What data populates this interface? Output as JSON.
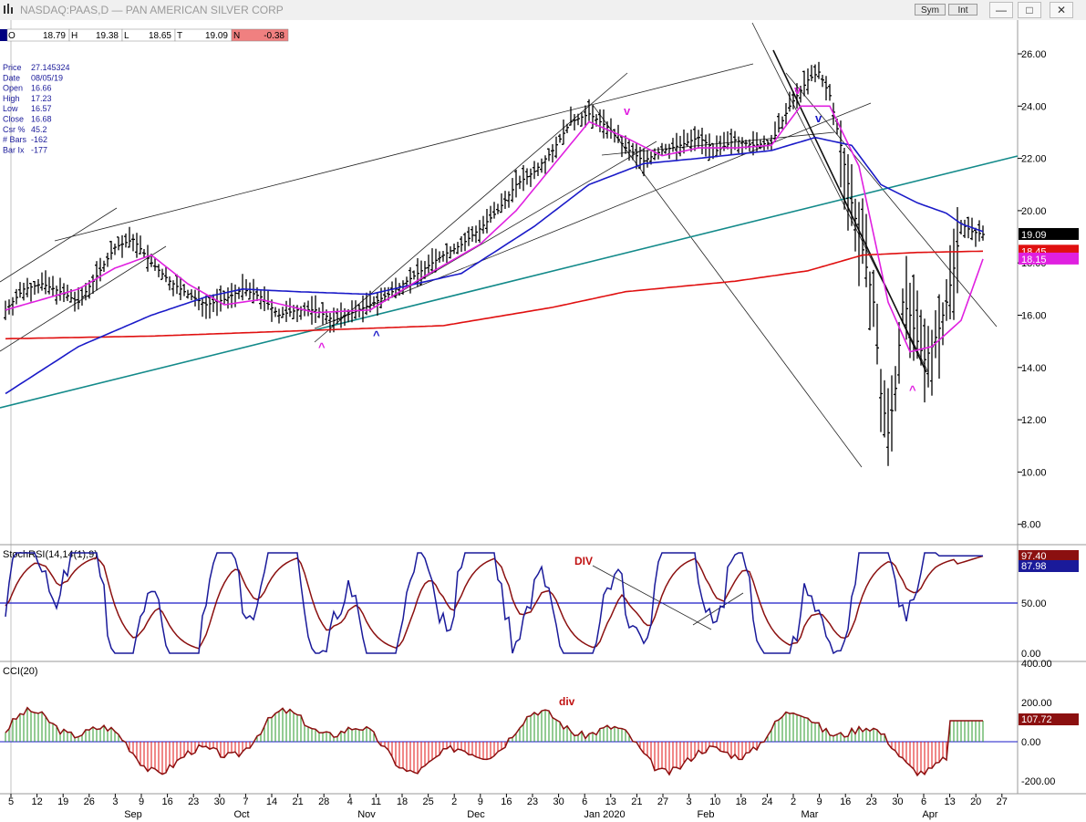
{
  "window": {
    "title": "NASDAQ:PAAS,D — PAN AMERICAN SILVER CORP",
    "sym_button": "Sym",
    "int_button": "Int",
    "minimize_glyph": "—",
    "maximize_glyph": "□",
    "close_glyph": "✕"
  },
  "ohlc_bar": {
    "o_label": "O",
    "o_value": "18.79",
    "h_label": "H",
    "h_value": "19.38",
    "l_label": "L",
    "l_value": "18.65",
    "c_label": "T",
    "c_value": "19.09",
    "n_label": "N",
    "n_value": "-0.38"
  },
  "data_window": [
    {
      "label": "Price",
      "value": "27.145324"
    },
    {
      "label": "Date",
      "value": "08/05/19"
    },
    {
      "label": "Open",
      "value": "16.66"
    },
    {
      "label": "High",
      "value": "17.23"
    },
    {
      "label": "Low",
      "value": "16.57"
    },
    {
      "label": "Close",
      "value": "16.68"
    },
    {
      "label": "Csr %",
      "value": "45.2"
    },
    {
      "label": "# Bars",
      "value": "-162"
    },
    {
      "label": "Bar Ix",
      "value": "-177"
    }
  ],
  "colors": {
    "price_bars": "#000000",
    "ma_fast": "#e020e0",
    "ma_mid": "#1a1ac8",
    "ma_slow": "#e01010",
    "trend_teal": "#138a8a",
    "stoch_k": "#1a1a9a",
    "stoch_d": "#8b1010",
    "cci_pos": "#2a9a2a",
    "cci_neg": "#e01010",
    "cci_line": "#8b1010"
  },
  "chart_data": [
    {
      "type": "line",
      "name": "price",
      "y_ticks": [
        "26.00",
        "24.00",
        "22.00",
        "20.00",
        "18.00",
        "16.00",
        "14.00",
        "12.00",
        "10.00",
        "8.00"
      ],
      "ylim": [
        7.2,
        27.3
      ],
      "x_day_labels": [
        "5",
        "12",
        "19",
        "26",
        "3",
        "9",
        "16",
        "23",
        "30",
        "7",
        "14",
        "21",
        "28",
        "4",
        "11",
        "18",
        "25",
        "2",
        "9",
        "16",
        "23",
        "30",
        "6",
        "13",
        "21",
        "27",
        "3",
        "10",
        "18",
        "24",
        "2",
        "9",
        "16",
        "23",
        "30",
        "6",
        "13",
        "20",
        "27"
      ],
      "x_month_labels": [
        "Sep",
        "Oct",
        "Nov",
        "Dec",
        "Jan 2020",
        "Feb",
        "Mar",
        "Apr"
      ],
      "last_values": [
        {
          "name": "price",
          "value": "19.09"
        },
        {
          "name": "ma_red",
          "value": "18.45"
        },
        {
          "name": "ma_magenta",
          "value": "18.15"
        }
      ],
      "close_series": [
        [
          0,
          16.2
        ],
        [
          5,
          17.0
        ],
        [
          10,
          17.2
        ],
        [
          15,
          16.9
        ],
        [
          20,
          16.5
        ],
        [
          25,
          17.5
        ],
        [
          30,
          18.6
        ],
        [
          35,
          18.9
        ],
        [
          40,
          18.0
        ],
        [
          45,
          17.3
        ],
        [
          50,
          16.8
        ],
        [
          55,
          16.4
        ],
        [
          60,
          16.6
        ],
        [
          65,
          17.0
        ],
        [
          70,
          16.7
        ],
        [
          75,
          16.0
        ],
        [
          80,
          16.2
        ],
        [
          85,
          16.2
        ],
        [
          90,
          15.8
        ],
        [
          95,
          16.1
        ],
        [
          100,
          16.4
        ],
        [
          105,
          16.8
        ],
        [
          110,
          17.3
        ],
        [
          115,
          17.8
        ],
        [
          120,
          18.3
        ],
        [
          125,
          18.7
        ],
        [
          130,
          19.3
        ],
        [
          135,
          20.0
        ],
        [
          140,
          21.0
        ],
        [
          145,
          21.5
        ],
        [
          150,
          22.3
        ],
        [
          155,
          23.4
        ],
        [
          160,
          23.7
        ],
        [
          165,
          23.2
        ],
        [
          170,
          22.4
        ],
        [
          175,
          21.9
        ],
        [
          180,
          22.3
        ],
        [
          185,
          22.5
        ],
        [
          190,
          22.8
        ],
        [
          195,
          22.3
        ],
        [
          200,
          22.7
        ],
        [
          205,
          22.5
        ],
        [
          210,
          22.6
        ],
        [
          215,
          24.0
        ],
        [
          220,
          25.0
        ],
        [
          223,
          25.3
        ],
        [
          226,
          24.4
        ],
        [
          229,
          22.5
        ],
        [
          232,
          20.3
        ],
        [
          235,
          18.5
        ],
        [
          238,
          16.5
        ],
        [
          240,
          13.0
        ],
        [
          242,
          11.5
        ],
        [
          244,
          13.2
        ],
        [
          246,
          16.5
        ],
        [
          248,
          16.0
        ],
        [
          250,
          15.0
        ],
        [
          252,
          14.3
        ],
        [
          254,
          14.8
        ],
        [
          256,
          15.5
        ],
        [
          258,
          16.5
        ],
        [
          260,
          17.8
        ],
        [
          262,
          19.5
        ],
        [
          265,
          19.2
        ],
        [
          268,
          19.09
        ]
      ],
      "ma_magenta": [
        [
          0,
          16.2
        ],
        [
          20,
          17.0
        ],
        [
          30,
          17.8
        ],
        [
          40,
          18.3
        ],
        [
          50,
          17.2
        ],
        [
          60,
          16.4
        ],
        [
          70,
          16.6
        ],
        [
          85,
          16.1
        ],
        [
          100,
          16.2
        ],
        [
          115,
          17.5
        ],
        [
          130,
          18.7
        ],
        [
          140,
          20.0
        ],
        [
          150,
          21.7
        ],
        [
          160,
          23.4
        ],
        [
          170,
          22.8
        ],
        [
          180,
          22.1
        ],
        [
          190,
          22.4
        ],
        [
          200,
          22.4
        ],
        [
          210,
          22.5
        ],
        [
          218,
          24.0
        ],
        [
          226,
          24.0
        ],
        [
          234,
          21.7
        ],
        [
          242,
          16.5
        ],
        [
          248,
          14.6
        ],
        [
          254,
          14.8
        ],
        [
          262,
          15.8
        ],
        [
          268,
          18.15
        ]
      ],
      "ma_blue": [
        [
          0,
          13.0
        ],
        [
          20,
          14.8
        ],
        [
          40,
          16.0
        ],
        [
          55,
          16.7
        ],
        [
          65,
          17.0
        ],
        [
          80,
          16.9
        ],
        [
          100,
          16.8
        ],
        [
          125,
          17.6
        ],
        [
          145,
          19.4
        ],
        [
          160,
          21.0
        ],
        [
          175,
          21.8
        ],
        [
          190,
          22.0
        ],
        [
          210,
          22.3
        ],
        [
          222,
          22.8
        ],
        [
          232,
          22.5
        ],
        [
          240,
          21.0
        ],
        [
          250,
          20.3
        ],
        [
          258,
          19.9
        ],
        [
          262,
          19.5
        ],
        [
          268,
          19.2
        ]
      ],
      "ma_red": [
        [
          0,
          15.1
        ],
        [
          40,
          15.2
        ],
        [
          80,
          15.4
        ],
        [
          120,
          15.6
        ],
        [
          150,
          16.3
        ],
        [
          170,
          16.9
        ],
        [
          200,
          17.3
        ],
        [
          220,
          17.7
        ],
        [
          235,
          18.3
        ],
        [
          250,
          18.4
        ],
        [
          268,
          18.45
        ]
      ]
    },
    {
      "type": "line",
      "name": "StochRSI(14,14(1),9)",
      "label": "StochRSI(14,14(1),9)",
      "y_ticks": [
        "0.00",
        "50.00"
      ],
      "ylim": [
        -5,
        105
      ],
      "last_values": [
        {
          "name": "d",
          "value": "97.40"
        },
        {
          "name": "k",
          "value": "87.98"
        }
      ],
      "annotation": "DIV"
    },
    {
      "type": "bar",
      "name": "CCI(20)",
      "label": "CCI(20)",
      "y_ticks": [
        "400.00",
        "200.00",
        "0.00",
        "-200.00"
      ],
      "ylim": [
        -260,
        420
      ],
      "last_values": [
        {
          "name": "cci",
          "value": "107.72"
        }
      ],
      "annotation": "div"
    }
  ],
  "markers": {
    "up": "^",
    "down": "v"
  }
}
